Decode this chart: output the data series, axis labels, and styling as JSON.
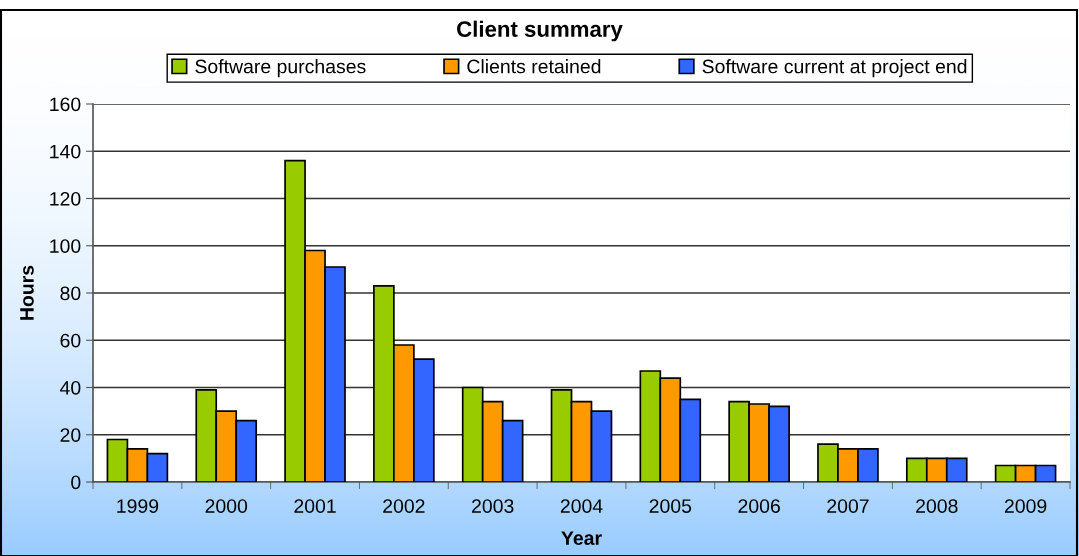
{
  "chart_data": {
    "type": "bar",
    "title": "Client summary",
    "xlabel": "Year",
    "ylabel": "Hours",
    "categories": [
      "1999",
      "2000",
      "2001",
      "2002",
      "2003",
      "2004",
      "2005",
      "2006",
      "2007",
      "2008",
      "2009"
    ],
    "series": [
      {
        "name": "Software purchases",
        "color": "#99cc00",
        "values": [
          18,
          39,
          136,
          83,
          40,
          39,
          47,
          34,
          16,
          10,
          7
        ]
      },
      {
        "name": "Clients retained",
        "color": "#ff9900",
        "values": [
          14,
          30,
          98,
          58,
          34,
          34,
          44,
          33,
          14,
          10,
          7
        ]
      },
      {
        "name": "Software current at project end",
        "color": "#3366ff",
        "values": [
          12,
          26,
          91,
          52,
          26,
          30,
          35,
          32,
          14,
          10,
          7
        ]
      }
    ],
    "ylim": [
      0,
      160
    ],
    "yticks": [
      0,
      20,
      40,
      60,
      80,
      100,
      120,
      140,
      160
    ],
    "grid": "y",
    "legend": "top"
  }
}
